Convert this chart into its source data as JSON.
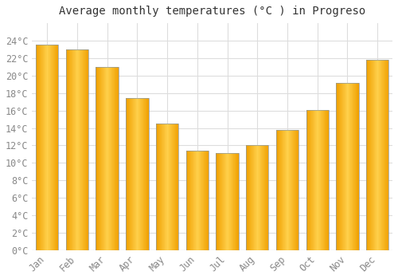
{
  "title": "Average monthly temperatures (°C ) in Progreso",
  "months": [
    "Jan",
    "Feb",
    "Mar",
    "Apr",
    "May",
    "Jun",
    "Jul",
    "Aug",
    "Sep",
    "Oct",
    "Nov",
    "Dec"
  ],
  "values": [
    23.5,
    23.0,
    21.0,
    17.4,
    14.5,
    11.4,
    11.1,
    12.0,
    13.8,
    16.1,
    19.2,
    21.8
  ],
  "bar_color_light": "#FFD04B",
  "bar_color_dark": "#F0A000",
  "bar_edge_color": "#8899AA",
  "background_color": "#FFFFFF",
  "plot_bg_color": "#FFFFFF",
  "grid_color": "#DDDDDD",
  "ylim": [
    0,
    26
  ],
  "ytick_step": 2,
  "title_fontsize": 10,
  "tick_fontsize": 8.5,
  "font_family": "monospace",
  "tick_color": "#888888",
  "title_color": "#333333"
}
